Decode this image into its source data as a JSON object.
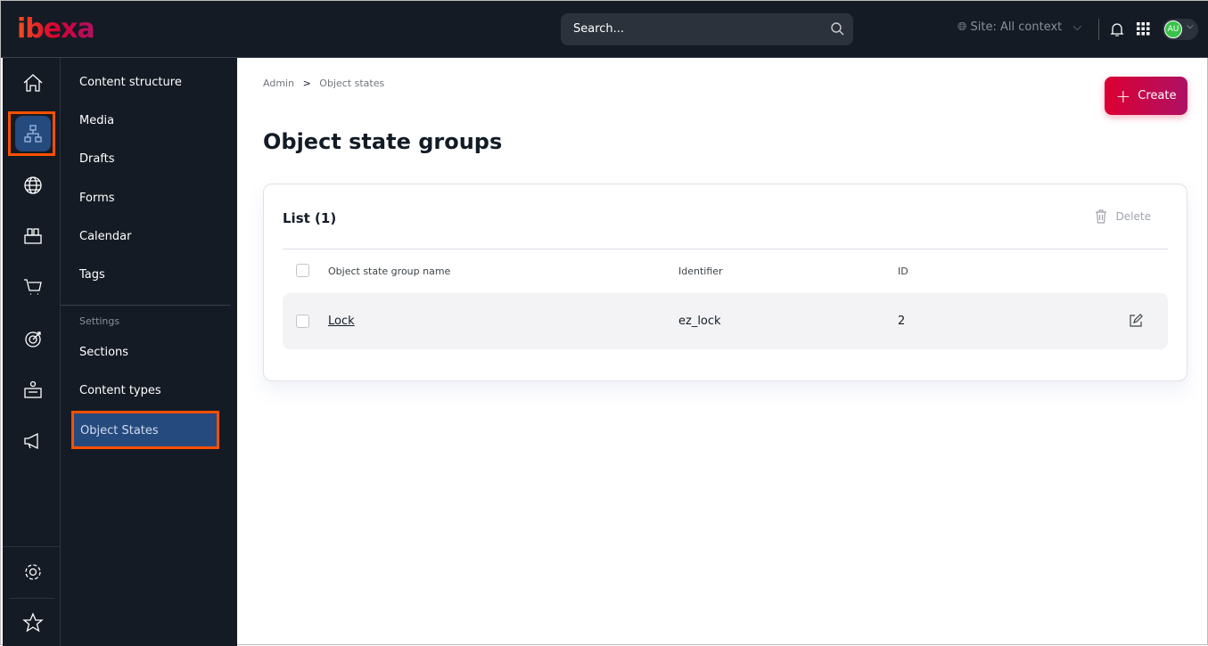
{
  "header": {
    "logo": "ibexa",
    "search_placeholder": "Search...",
    "site_context": "Site: All context",
    "avatar": "AU"
  },
  "rail": {
    "icons": [
      "home-icon",
      "structure-icon",
      "globe-icon",
      "catalog-icon",
      "cart-icon",
      "target-icon",
      "admin-icon",
      "megaphone-icon",
      "gear-icon",
      "star-icon"
    ],
    "active": "structure-icon"
  },
  "submenu": {
    "items": [
      "Content structure",
      "Media",
      "Drafts",
      "Forms",
      "Calendar",
      "Tags"
    ],
    "section": "Settings",
    "settings_items": [
      "Sections",
      "Content types",
      "Object States"
    ],
    "active": "Object States"
  },
  "breadcrumb": [
    "Admin",
    "Object states"
  ],
  "page_title": "Object state groups",
  "create_label": "Create",
  "list": {
    "title": "List (1)",
    "delete_label": "Delete",
    "columns": [
      "Object state group name",
      "Identifier",
      "ID"
    ],
    "rows": [
      {
        "name": "Lock",
        "identifier": "ez_lock",
        "id": "2"
      }
    ]
  },
  "colors": {
    "accent": "#db0032",
    "active_bg": "#254a7e",
    "highlight": "#fe5000"
  }
}
